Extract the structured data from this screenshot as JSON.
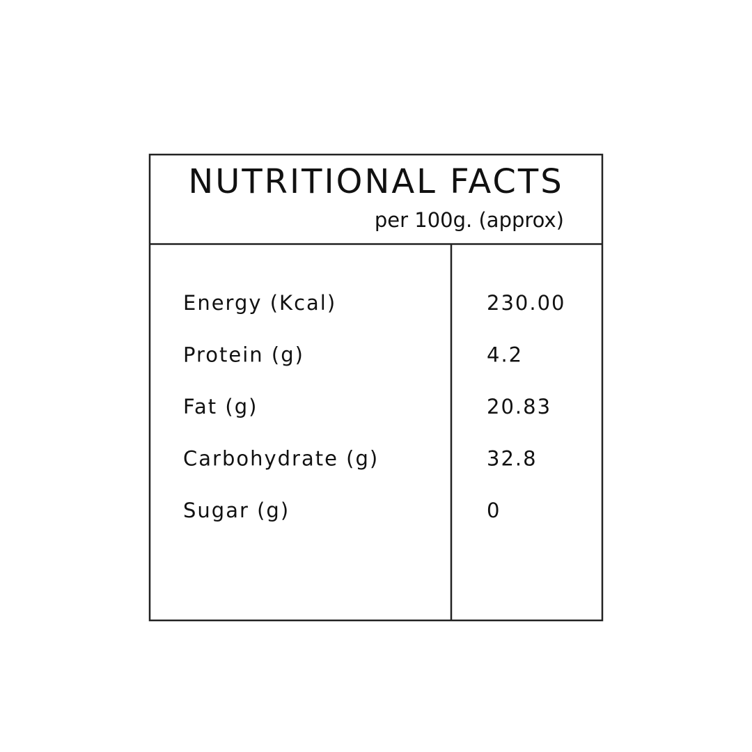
{
  "header": {
    "title": "NUTRITIONAL FACTS",
    "subtitle": "per 100g. (approx)"
  },
  "table": {
    "rows": [
      [
        "Energy (Kcal)",
        "230.00"
      ],
      [
        "Protein (g)",
        "4.2"
      ],
      [
        "Fat (g)",
        "20.83"
      ],
      [
        "Carbohydrate (g)",
        "32.8"
      ],
      [
        "Sugar (g)",
        "0"
      ]
    ]
  }
}
